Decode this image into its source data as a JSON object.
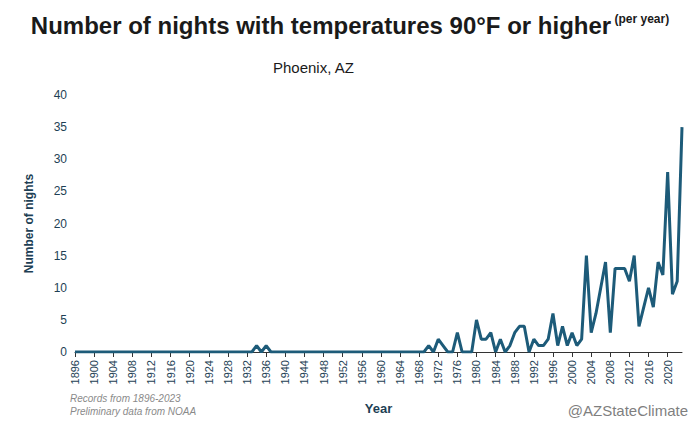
{
  "chart_data": {
    "type": "line",
    "title": "Number of nights with temperatures 90°F or higher",
    "subtitle": "Phoenix, AZ",
    "annotations": {
      "title_note": "(per year)",
      "source": [
        "Records from 1896-2023",
        "Preliminary data from NOAA"
      ],
      "credit": "@AZStateClimate"
    },
    "x_label": "Year",
    "y_label": "Number of nights",
    "color": "#1d5b79",
    "grid": false,
    "x": [
      1896,
      1897,
      1898,
      1899,
      1900,
      1901,
      1902,
      1903,
      1904,
      1905,
      1906,
      1907,
      1908,
      1909,
      1910,
      1911,
      1912,
      1913,
      1914,
      1915,
      1916,
      1917,
      1918,
      1919,
      1920,
      1921,
      1922,
      1923,
      1924,
      1925,
      1926,
      1927,
      1928,
      1929,
      1930,
      1931,
      1932,
      1933,
      1934,
      1935,
      1936,
      1937,
      1938,
      1939,
      1940,
      1941,
      1942,
      1943,
      1944,
      1945,
      1946,
      1947,
      1948,
      1949,
      1950,
      1951,
      1952,
      1953,
      1954,
      1955,
      1956,
      1957,
      1958,
      1959,
      1960,
      1961,
      1962,
      1963,
      1964,
      1965,
      1966,
      1967,
      1968,
      1969,
      1970,
      1971,
      1972,
      1973,
      1974,
      1975,
      1976,
      1977,
      1978,
      1979,
      1980,
      1981,
      1982,
      1983,
      1984,
      1985,
      1986,
      1987,
      1988,
      1989,
      1990,
      1991,
      1992,
      1993,
      1994,
      1995,
      1996,
      1997,
      1998,
      1999,
      2000,
      2001,
      2002,
      2003,
      2004,
      2005,
      2006,
      2007,
      2008,
      2009,
      2010,
      2011,
      2012,
      2013,
      2014,
      2015,
      2016,
      2017,
      2018,
      2019,
      2020,
      2021,
      2022,
      2023
    ],
    "values": [
      0,
      0,
      0,
      0,
      0,
      0,
      0,
      0,
      0,
      0,
      0,
      0,
      0,
      0,
      0,
      0,
      0,
      0,
      0,
      0,
      0,
      0,
      0,
      0,
      0,
      0,
      0,
      0,
      0,
      0,
      0,
      0,
      0,
      0,
      0,
      0,
      0,
      0,
      1,
      0,
      1,
      0,
      0,
      0,
      0,
      0,
      0,
      0,
      0,
      0,
      0,
      0,
      0,
      0,
      0,
      0,
      0,
      0,
      0,
      0,
      0,
      0,
      0,
      0,
      0,
      0,
      0,
      0,
      0,
      0,
      0,
      0,
      0,
      0,
      1,
      0,
      2,
      1,
      0,
      0,
      3,
      0,
      0,
      0,
      5,
      2,
      2,
      3,
      0,
      2,
      0,
      1,
      3,
      4,
      4,
      0,
      2,
      1,
      1,
      2,
      6,
      1,
      4,
      1,
      3,
      1,
      2,
      15,
      3,
      6,
      10,
      14,
      3,
      13,
      13,
      13,
      11,
      15,
      4,
      7,
      10,
      7,
      14,
      12,
      28,
      9,
      11,
      35
    ],
    "xlim": [
      1896,
      2023
    ],
    "xticks": [
      1896,
      1900,
      1904,
      1908,
      1912,
      1916,
      1920,
      1924,
      1928,
      1932,
      1936,
      1940,
      1944,
      1948,
      1952,
      1956,
      1960,
      1964,
      1968,
      1972,
      1976,
      1980,
      1984,
      1988,
      1992,
      1996,
      2000,
      2004,
      2008,
      2012,
      2016,
      2020
    ],
    "ylim": [
      0,
      40
    ],
    "yticks": [
      0,
      5,
      10,
      15,
      20,
      25,
      30,
      35,
      40
    ]
  }
}
